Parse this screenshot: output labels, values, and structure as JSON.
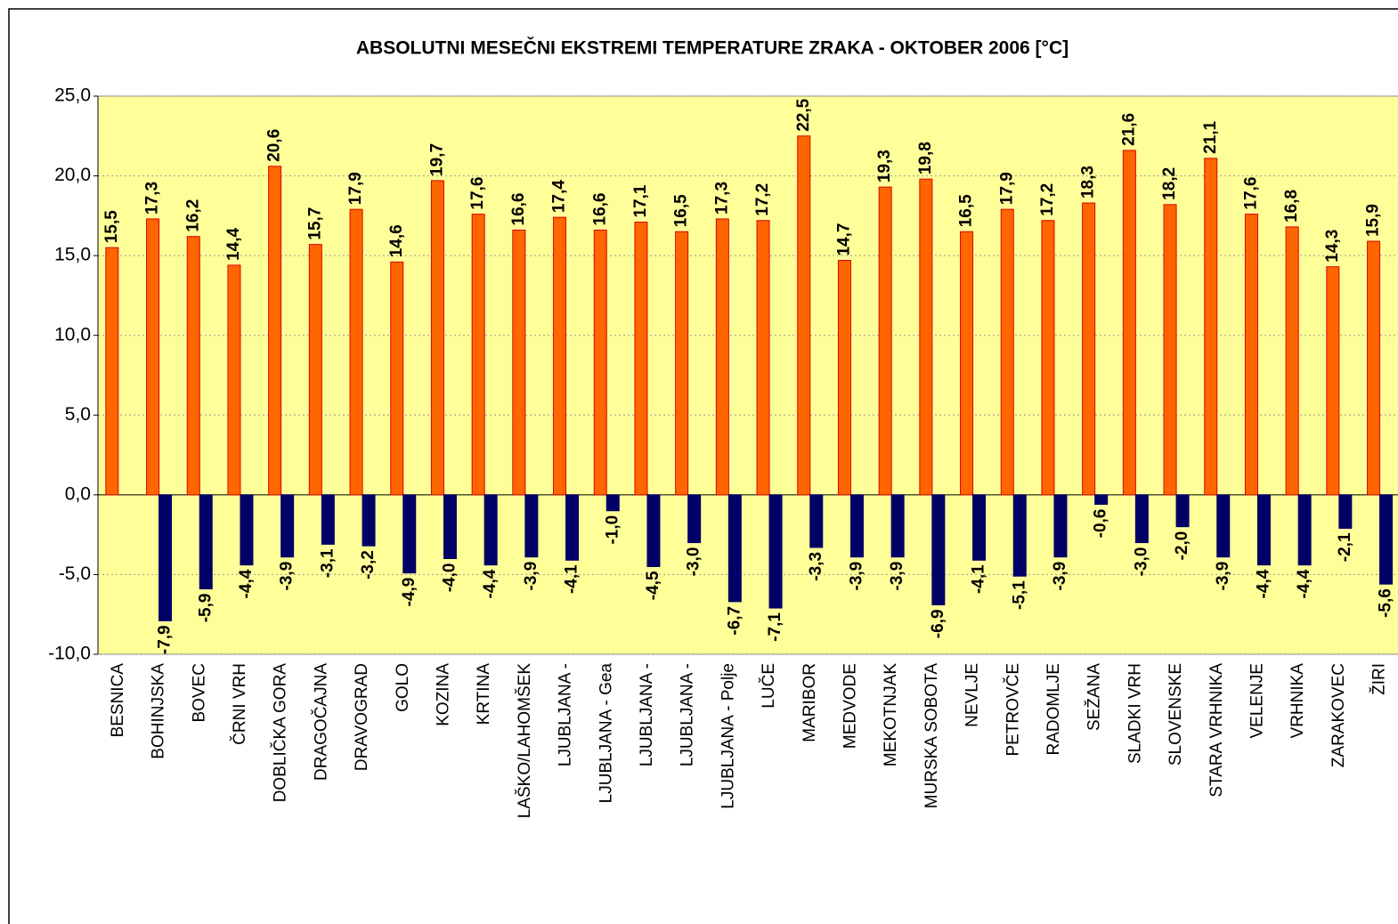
{
  "chart_data": {
    "type": "bar",
    "title": "ABSOLUTNI MESEČNI EKSTREMI TEMPERATURE ZRAKA - OKTOBER 2006 [°C]",
    "categories": [
      "BESNICA",
      "BOHINJSKA",
      "BOVEC",
      "ČRNI VRH",
      "DOBLIČKA GORA",
      "DRAGOČAJNA",
      "DRAVOGRAD",
      "GOLO",
      "KOZINA",
      "KRTINA",
      "LAŠKO/LAHOMŠEK",
      "LJUBLJANA -",
      "LJUBLJANA - Gea",
      "LJUBLJANA -",
      "LJUBLJANA -",
      "LJUBLJANA  - Polje",
      "LUČE",
      "MARIBOR",
      "MEDVODE",
      "MEKOTNJAK",
      "MURSKA SOBOTA",
      "NEVLJE",
      "PETROVČE",
      "RADOMLJE",
      "SEŽANA",
      "SLADKI VRH",
      "SLOVENSKE",
      "STARA VRHNIKA",
      "VELENJE",
      "VRHNIKA",
      "ZARAKOVEC",
      "ŽIRI"
    ],
    "series": [
      {
        "color": "#ff6600",
        "label_color": "#ff6600",
        "values": [
          15.5,
          17.3,
          16.2,
          14.4,
          20.6,
          15.7,
          17.9,
          14.6,
          19.7,
          17.6,
          16.6,
          17.4,
          16.6,
          17.1,
          16.5,
          17.3,
          17.2,
          22.5,
          14.7,
          19.3,
          19.8,
          16.5,
          17.9,
          17.2,
          18.3,
          21.6,
          18.2,
          21.1,
          17.6,
          16.8,
          14.3,
          15.9
        ],
        "value_labels": [
          "15,5",
          "17,3",
          "16,2",
          "14,4",
          "20,6",
          "15,7",
          "17,9",
          "14,6",
          "19,7",
          "17,6",
          "16,6",
          "17,4",
          "16,6",
          "17,1",
          "16,5",
          "17,3",
          "17,2",
          "22,5",
          "14,7",
          "19,3",
          "19,8",
          "16,5",
          "17,9",
          "17,2",
          "18,3",
          "21,6",
          "18,2",
          "21,1",
          "17,6",
          "16,8",
          "14,3",
          "15,9"
        ]
      },
      {
        "color": "#000066",
        "label_color": "#0000ff",
        "values": [
          null,
          -7.9,
          -5.9,
          -4.4,
          -3.9,
          -3.1,
          -3.2,
          -4.9,
          -4.0,
          -4.4,
          -3.9,
          -4.1,
          -1.0,
          -4.5,
          -3.0,
          -6.7,
          -7.1,
          -3.3,
          -3.9,
          -3.9,
          -6.9,
          -4.1,
          -5.1,
          -3.9,
          -0.6,
          -3.0,
          -2.0,
          -3.9,
          -4.4,
          -4.4,
          -2.1,
          -5.6
        ],
        "value_labels": [
          null,
          "-7,9",
          "-5,9",
          "-4,4",
          "-3,9",
          "-3,1",
          "-3,2",
          "-4,9",
          "-4,0",
          "-4,4",
          "-3,9",
          "-4,1",
          "-1,0",
          "-4,5",
          "-3,0",
          "-6,7",
          "-7,1",
          "-3,3",
          "-3,9",
          "-3,9",
          "-6,9",
          "-4,1",
          "-5,1",
          "-3,9",
          "-0,6",
          "-3,0",
          "-2,0",
          "-3,9",
          "-4,4",
          "-4,4",
          "-2,1",
          "-5,6"
        ]
      }
    ],
    "ylim": [
      -10,
      25
    ],
    "yticks": [
      {
        "value": -10,
        "label": "-10,0"
      },
      {
        "value": -5,
        "label": "-5,0"
      },
      {
        "value": 0,
        "label": "0,0"
      },
      {
        "value": 5,
        "label": "5,0"
      },
      {
        "value": 10,
        "label": "10,0"
      },
      {
        "value": 15,
        "label": "15,0"
      },
      {
        "value": 20,
        "label": "20,0"
      },
      {
        "value": 25,
        "label": "25,0"
      }
    ],
    "grid": true,
    "plot_background": "#ffff99"
  }
}
